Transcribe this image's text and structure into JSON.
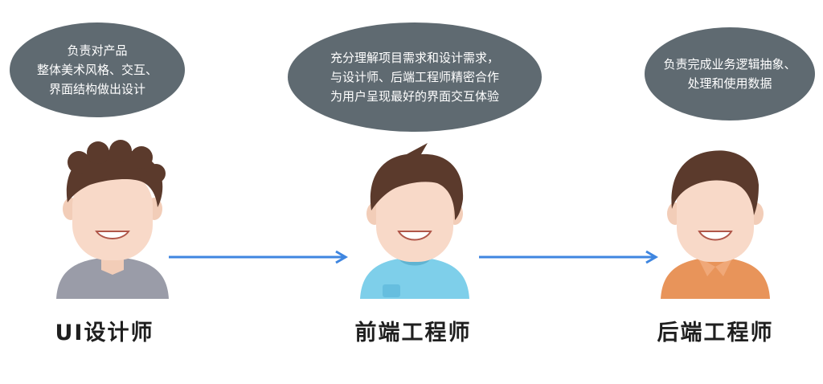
{
  "bubbles": [
    {
      "lines": [
        "负责对产品",
        "整体美术风格、交互、",
        "界面结构做出设计"
      ]
    },
    {
      "lines": [
        "充分理解项目需求和设计需求，",
        "与设计师、后端工程师精密合作",
        "为用户呈现最好的界面交互体验"
      ]
    },
    {
      "lines": [
        "负责完成业务逻辑抽象、",
        "处理和使用数据"
      ]
    }
  ],
  "roles": [
    "UI设计师",
    "前端工程师",
    "后端工程师"
  ],
  "colors": {
    "bubble": "#5f6a71",
    "skin": "#f8d9c8",
    "hair": "#5b3a2c",
    "designer_shirt": "#9a9ca8",
    "frontend_shirt": "#7ecfea",
    "backend_shirt": "#e8945a",
    "arrow": "#3f86e0"
  },
  "icons": [
    "designer-avatar",
    "frontend-avatar",
    "backend-avatar",
    "right-arrow-icon"
  ]
}
